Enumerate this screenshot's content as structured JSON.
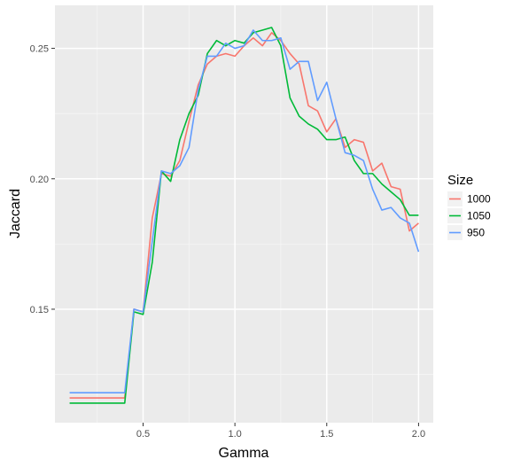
{
  "chart_data": {
    "type": "line",
    "xlabel": "Gamma",
    "ylabel": "Jaccard",
    "xlim": [
      0.02,
      2.08
    ],
    "ylim": [
      0.1065,
      0.2665
    ],
    "x_ticks": [
      0.5,
      1.0,
      1.5,
      2.0
    ],
    "x_tick_labels": [
      "0.5",
      "1.0",
      "1.5",
      "2.0"
    ],
    "y_ticks": [
      0.15,
      0.2,
      0.25
    ],
    "y_tick_labels": [
      "0.15",
      "0.20",
      "0.25"
    ],
    "grid": true,
    "legend": {
      "title": "Size",
      "position": "right"
    },
    "x": [
      0.1,
      0.15,
      0.2,
      0.25,
      0.3,
      0.35,
      0.4,
      0.45,
      0.5,
      0.55,
      0.6,
      0.65,
      0.7,
      0.75,
      0.8,
      0.85,
      0.9,
      0.95,
      1.0,
      1.05,
      1.1,
      1.15,
      1.2,
      1.25,
      1.3,
      1.35,
      1.4,
      1.45,
      1.5,
      1.55,
      1.6,
      1.65,
      1.7,
      1.75,
      1.8,
      1.85,
      1.9,
      1.95,
      2.0
    ],
    "series": [
      {
        "name": "1000",
        "color": "#F8766D",
        "values": [
          0.116,
          0.116,
          0.116,
          0.116,
          0.116,
          0.116,
          0.116,
          0.15,
          0.149,
          0.185,
          0.202,
          0.201,
          0.207,
          0.222,
          0.236,
          0.244,
          0.247,
          0.248,
          0.247,
          0.251,
          0.254,
          0.251,
          0.256,
          0.253,
          0.248,
          0.244,
          0.228,
          0.226,
          0.218,
          0.223,
          0.212,
          0.215,
          0.214,
          0.203,
          0.206,
          0.197,
          0.196,
          0.18,
          0.183
        ]
      },
      {
        "name": "1050",
        "color": "#00BA38",
        "values": [
          0.114,
          0.114,
          0.114,
          0.114,
          0.114,
          0.114,
          0.114,
          0.149,
          0.148,
          0.168,
          0.203,
          0.199,
          0.215,
          0.225,
          0.232,
          0.248,
          0.253,
          0.251,
          0.253,
          0.252,
          0.256,
          0.257,
          0.258,
          0.251,
          0.231,
          0.224,
          0.221,
          0.219,
          0.215,
          0.215,
          0.216,
          0.207,
          0.202,
          0.202,
          0.198,
          0.195,
          0.192,
          0.186,
          0.186
        ]
      },
      {
        "name": "950",
        "color": "#619CFF",
        "values": [
          0.118,
          0.118,
          0.118,
          0.118,
          0.118,
          0.118,
          0.118,
          0.15,
          0.149,
          0.176,
          0.203,
          0.202,
          0.205,
          0.212,
          0.234,
          0.247,
          0.247,
          0.252,
          0.25,
          0.251,
          0.257,
          0.253,
          0.253,
          0.254,
          0.242,
          0.245,
          0.245,
          0.23,
          0.237,
          0.223,
          0.21,
          0.209,
          0.207,
          0.196,
          0.188,
          0.189,
          0.185,
          0.183,
          0.172
        ]
      }
    ]
  }
}
